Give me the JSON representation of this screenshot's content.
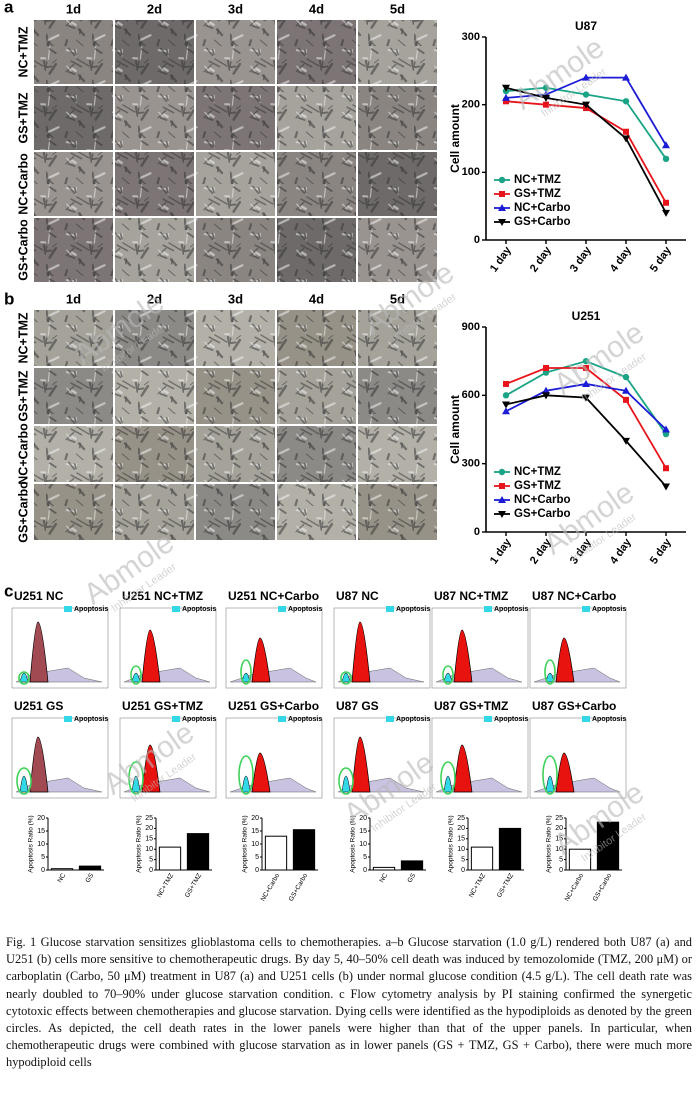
{
  "panel_labels": [
    "a",
    "b",
    "c"
  ],
  "microscopy": {
    "days": [
      "1d",
      "2d",
      "3d",
      "4d",
      "5d"
    ],
    "groups": [
      "NC+TMZ",
      "GS+TMZ",
      "NC+Carbo",
      "GS+Carbo"
    ]
  },
  "flow": {
    "titles": [
      "U251 NC",
      "U251 NC+TMZ",
      "U251 NC+Carbo",
      "U87 NC",
      "U87 NC+TMZ",
      "U87 NC+Carbo",
      "U251 GS",
      "U251 GS+TMZ",
      "U251 GS+Carbo",
      "U87 GS",
      "U87 GS+TMZ",
      "U87 GS+Carbo"
    ],
    "legend": "Apoptosis"
  },
  "watermark": {
    "brand": "Abmole",
    "tagline": "Inhibitor Leader"
  },
  "chart_data": [
    {
      "type": "line",
      "title": "U87",
      "ylabel": "Cell amount",
      "categories": [
        "1 day",
        "2 day",
        "3 day",
        "4 day",
        "5 day"
      ],
      "ylim": [
        0,
        300
      ],
      "yticks": [
        0,
        100,
        200,
        300
      ],
      "legend": "lower left",
      "series": [
        {
          "name": "NC+TMZ",
          "color": "#1aa384",
          "marker": "circle",
          "values": [
            220,
            225,
            215,
            205,
            120
          ]
        },
        {
          "name": "GS+TMZ",
          "color": "#e8141b",
          "marker": "square",
          "values": [
            205,
            200,
            195,
            160,
            55
          ]
        },
        {
          "name": "NC+Carbo",
          "color": "#1c1cd6",
          "marker": "triangle",
          "values": [
            210,
            215,
            240,
            240,
            140
          ]
        },
        {
          "name": "GS+Carbo",
          "color": "#000000",
          "marker": "down-triangle",
          "values": [
            225,
            210,
            200,
            150,
            40
          ]
        }
      ]
    },
    {
      "type": "line",
      "title": "U251",
      "ylabel": "Cell amount",
      "categories": [
        "1 day",
        "2 day",
        "3 day",
        "4 day",
        "5 day"
      ],
      "ylim": [
        0,
        900
      ],
      "yticks": [
        0,
        300,
        600,
        900
      ],
      "legend": "lower left",
      "series": [
        {
          "name": "NC+TMZ",
          "color": "#1aa384",
          "marker": "circle",
          "values": [
            600,
            700,
            750,
            680,
            430
          ]
        },
        {
          "name": "GS+TMZ",
          "color": "#e8141b",
          "marker": "square",
          "values": [
            650,
            720,
            720,
            580,
            280
          ]
        },
        {
          "name": "NC+Carbo",
          "color": "#1c1cd6",
          "marker": "triangle",
          "values": [
            530,
            620,
            650,
            620,
            450
          ]
        },
        {
          "name": "GS+Carbo",
          "color": "#000000",
          "marker": "down-triangle",
          "values": [
            560,
            600,
            590,
            400,
            200
          ]
        }
      ]
    },
    {
      "type": "bar",
      "ylabel": "Apoptosis Ratio (%)",
      "categories": [
        "NC",
        "GS"
      ],
      "values": [
        0.5,
        1.5
      ],
      "colors": [
        "#ffffff",
        "#000000"
      ],
      "ylim": [
        0,
        20
      ],
      "yticks": [
        0,
        5,
        10,
        15,
        20
      ]
    },
    {
      "type": "bar",
      "ylabel": "Apoptosis Ratio (%)",
      "categories": [
        "NC+TMZ",
        "GS+TMZ"
      ],
      "values": [
        11,
        17.5
      ],
      "colors": [
        "#ffffff",
        "#000000"
      ],
      "ylim": [
        0,
        25
      ],
      "yticks": [
        0,
        5,
        10,
        15,
        20,
        25
      ]
    },
    {
      "type": "bar",
      "ylabel": "Apoptosis Ratio (%)",
      "categories": [
        "NC+Carbo",
        "GS+Carbo"
      ],
      "values": [
        13,
        15.5
      ],
      "colors": [
        "#ffffff",
        "#000000"
      ],
      "ylim": [
        0,
        20
      ],
      "yticks": [
        0,
        5,
        10,
        15,
        20
      ]
    },
    {
      "type": "bar",
      "ylabel": "Apoptosis Ratio (%)",
      "categories": [
        "NC",
        "GS"
      ],
      "values": [
        1,
        3.5
      ],
      "colors": [
        "#ffffff",
        "#000000"
      ],
      "ylim": [
        0,
        20
      ],
      "yticks": [
        0,
        5,
        10,
        15,
        20
      ]
    },
    {
      "type": "bar",
      "ylabel": "Apoptosis Ratio (%)",
      "categories": [
        "NC+TMZ",
        "GS+TMZ"
      ],
      "values": [
        11,
        20
      ],
      "colors": [
        "#ffffff",
        "#000000"
      ],
      "ylim": [
        0,
        25
      ],
      "yticks": [
        0,
        5,
        10,
        15,
        20,
        25
      ]
    },
    {
      "type": "bar",
      "ylabel": "Apoptosis Ratio (%)",
      "categories": [
        "NC+Carbo",
        "GS+Carbo"
      ],
      "values": [
        10,
        23
      ],
      "colors": [
        "#ffffff",
        "#000000"
      ],
      "ylim": [
        0,
        25
      ],
      "yticks": [
        0,
        5,
        10,
        15,
        20,
        25
      ]
    }
  ],
  "caption": "Fig. 1 Glucose starvation sensitizes glioblastoma cells to chemotherapies. a–b Glucose starvation (1.0 g/L) rendered both U87 (a) and U251 (b) cells more sensitive to chemotherapeutic drugs. By day 5, 40–50% cell death was induced by temozolomide (TMZ, 200 μM) or carboplatin (Carbo, 50 μM) treatment in U87 (a) and U251 cells (b) under normal glucose condition (4.5 g/L). The cell death rate was nearly doubled to 70–90% under glucose starvation condition. c Flow cytometry analysis by PI staining confirmed the synergetic cytotoxic effects between chemotherapies and glucose starvation. Dying cells were identified as the hypodiploids as denoted by the green circles. As depicted, the cell death rates in the lower panels were higher than that of the upper panels. In particular, when chemotherapeutic drugs were combined with glucose starvation as in lower panels (GS + TMZ, GS + Carbo), there were much more hypodiploid cells"
}
